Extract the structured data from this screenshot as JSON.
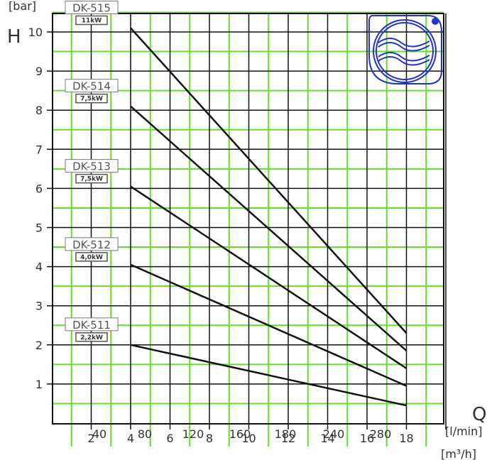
{
  "chart_data": {
    "type": "line",
    "y_unit": "[bar]",
    "y_symbol": "H",
    "x_symbol": "Q",
    "x_unit_flow": "[l/min]",
    "x_unit_m3": "[m³/h]",
    "ylim": [
      0,
      10.5
    ],
    "xlim_m3h": [
      0,
      20
    ],
    "grid": true,
    "y_ticks": [
      "1",
      "2",
      "3",
      "4",
      "5",
      "6",
      "7",
      "8",
      "9",
      "10"
    ],
    "x_ticks_m3h": [
      "2",
      "4",
      "6",
      "8",
      "10",
      "12",
      "14",
      "16",
      "18"
    ],
    "x_ticks_lmin": [
      "40",
      "80",
      "120",
      "160",
      "180",
      "240",
      "280"
    ],
    "series": [
      {
        "name": "DK-511",
        "power": "2,2kW",
        "x": [
          4,
          18
        ],
        "y": [
          2.0,
          0.45
        ]
      },
      {
        "name": "DK-512",
        "power": "4,0kW",
        "x": [
          4,
          18
        ],
        "y": [
          4.05,
          0.95
        ]
      },
      {
        "name": "DK-513",
        "power": "7,5kW",
        "x": [
          4,
          18
        ],
        "y": [
          6.05,
          1.4
        ]
      },
      {
        "name": "DK-514",
        "power": "7,5kW",
        "x": [
          4,
          18
        ],
        "y": [
          8.1,
          1.85
        ]
      },
      {
        "name": "DK-515",
        "power": "11kW",
        "x": [
          4,
          18
        ],
        "y": [
          10.1,
          2.3
        ]
      }
    ]
  },
  "colors": {
    "grid_black": "#111111",
    "grid_green": "#66dd33",
    "curve": "#111111",
    "logo": "#2233cc"
  },
  "logo_icon": "pump-logo-icon"
}
